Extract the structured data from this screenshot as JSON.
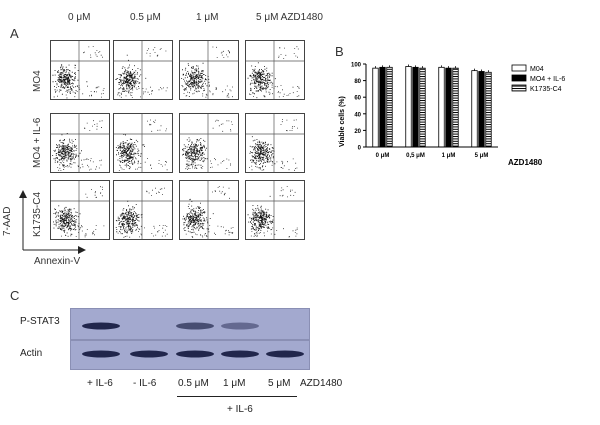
{
  "panel_a": {
    "letter": "A",
    "concentrations": [
      "0 μM",
      "0.5 μM",
      "1 μM",
      "5 μM AZD1480"
    ],
    "rows": [
      "MO4",
      "MO4 + IL-6",
      "K1735-C4"
    ],
    "y_axis_label": "7-AAD",
    "x_axis_label": "Annexin-V"
  },
  "panel_b": {
    "letter": "B",
    "drug_label": "AZD1480",
    "colors": {
      "MO4": "#ffffff",
      "MO4 + IL-6": "#000000",
      "K1735-C4": "striped"
    }
  },
  "chart_data": {
    "type": "bar",
    "categories": [
      "0 μM",
      "0,5 μM",
      "1 μM",
      "5 μM"
    ],
    "series": [
      {
        "name": "M04",
        "values": [
          95,
          97,
          96,
          92
        ]
      },
      {
        "name": "MO4 + IL-6",
        "values": [
          96,
          96,
          95,
          91
        ]
      },
      {
        "name": "K1735-C4",
        "values": [
          96,
          95,
          95,
          90
        ]
      }
    ],
    "xlabel": "",
    "ylabel": "Viable cells (%)",
    "ylim": [
      0,
      100
    ],
    "yticks": [
      0,
      20,
      40,
      60,
      80,
      100
    ],
    "legend_position": "right"
  },
  "panel_c": {
    "letter": "C",
    "blots": [
      "P-STAT3",
      "Actin"
    ],
    "lanes": [
      "+ IL-6",
      "- IL-6",
      "0.5 μM",
      "1 μM",
      "5 μM"
    ],
    "drug_label": "AZD1480",
    "group_label": "+ IL-6",
    "pstat3_intensity": [
      1.0,
      0.0,
      0.6,
      0.3,
      0.0
    ],
    "actin_intensity": [
      1.0,
      1.0,
      1.0,
      1.0,
      1.0
    ]
  }
}
